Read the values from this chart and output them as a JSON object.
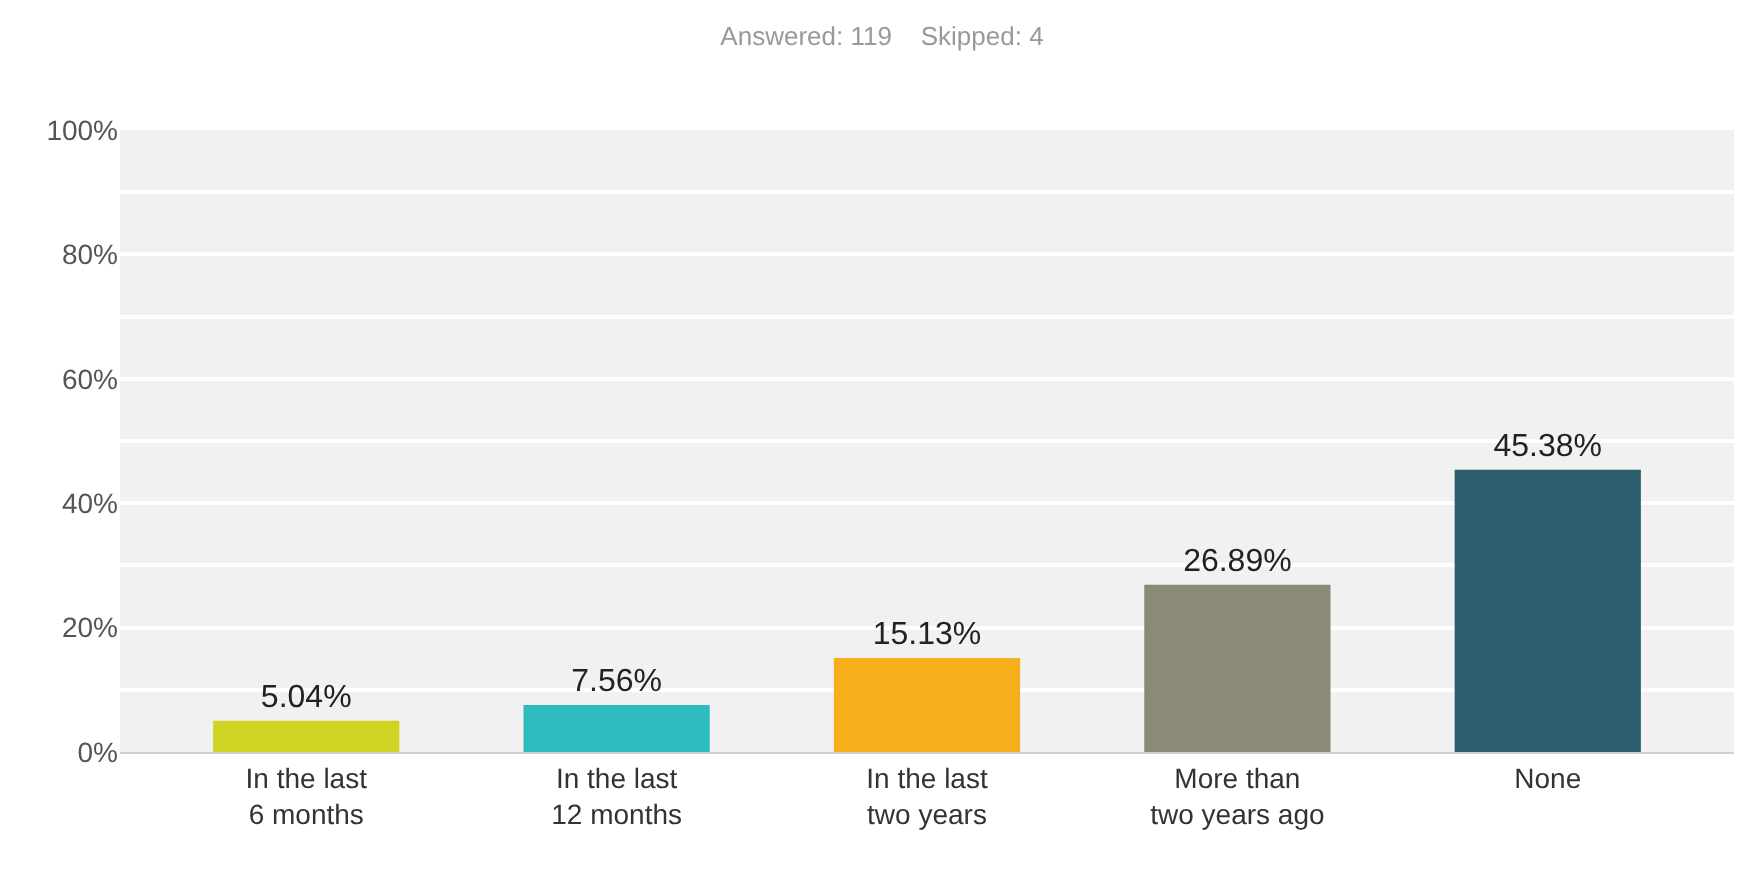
{
  "chart_data": {
    "type": "bar",
    "title": "Answered: 119    Skipped: 4",
    "categories": [
      "In the last\n6 months",
      "In the last\n12 months",
      "In the last\ntwo years",
      "More than\ntwo years ago",
      "None"
    ],
    "values": [
      5.04,
      7.56,
      15.13,
      26.89,
      45.38
    ],
    "colors": [
      "#cfd424",
      "#2fbcbf",
      "#f6ae1b",
      "#8b8a78",
      "#2c5f6e"
    ],
    "value_labels": [
      "5.04%",
      "7.56%",
      "15.13%",
      "26.89%",
      "45.38%"
    ],
    "ylim": [
      0,
      100
    ],
    "yticks": [
      {
        "value": 0,
        "label": "0%"
      },
      {
        "value": 10,
        "label": null
      },
      {
        "value": 20,
        "label": "20%"
      },
      {
        "value": 30,
        "label": null
      },
      {
        "value": 40,
        "label": "40%"
      },
      {
        "value": 50,
        "label": null
      },
      {
        "value": 60,
        "label": "60%"
      },
      {
        "value": 70,
        "label": null
      },
      {
        "value": 80,
        "label": "80%"
      },
      {
        "value": 90,
        "label": null
      },
      {
        "value": 100,
        "label": "100%"
      }
    ],
    "grid": "y",
    "legend": false
  }
}
